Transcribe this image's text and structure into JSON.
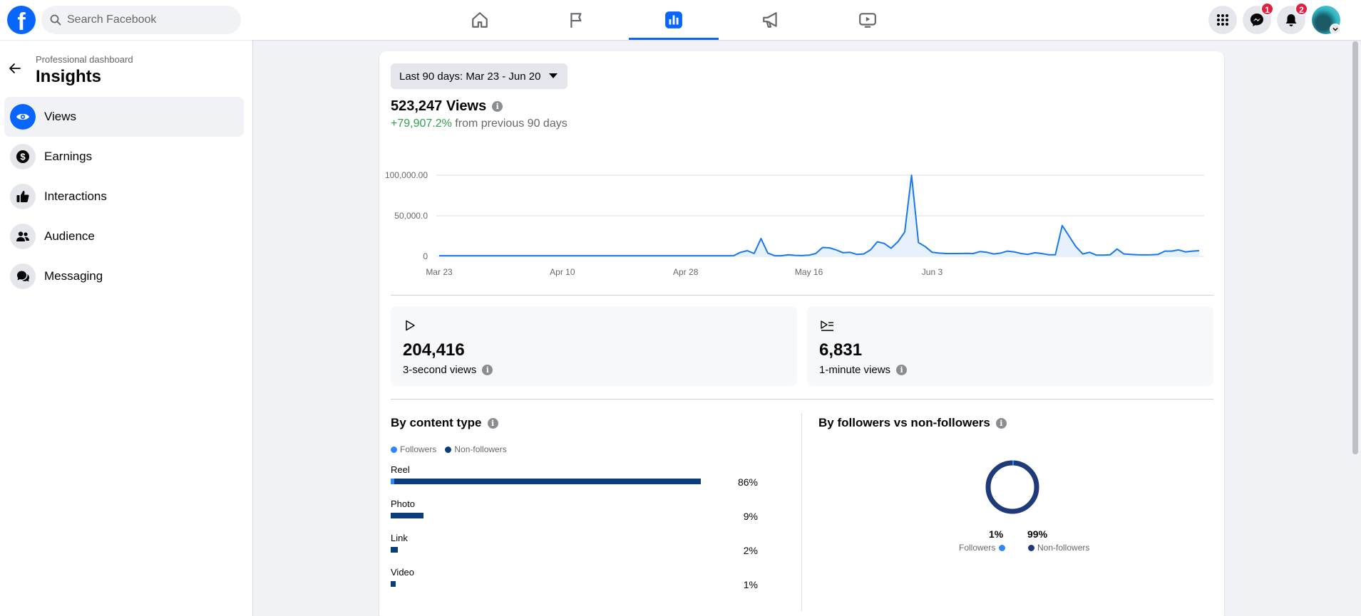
{
  "header": {
    "search_placeholder": "Search Facebook",
    "nav_tabs": [
      {
        "name": "home",
        "icon": "home-icon",
        "active": false
      },
      {
        "name": "pages",
        "icon": "flag-icon",
        "active": false
      },
      {
        "name": "insights",
        "icon": "bar-chart-icon",
        "active": true
      },
      {
        "name": "ads",
        "icon": "megaphone-icon",
        "active": false
      },
      {
        "name": "watch",
        "icon": "video-icon",
        "active": false
      }
    ],
    "messenger_badge": "1",
    "notifications_badge": "2",
    "accent": "#0866ff"
  },
  "sidebar": {
    "subtitle": "Professional dashboard",
    "title": "Insights",
    "items": [
      {
        "label": "Views",
        "icon": "eye-icon",
        "active": true
      },
      {
        "label": "Earnings",
        "icon": "dollar-icon",
        "active": false
      },
      {
        "label": "Interactions",
        "icon": "thumbs-up-icon",
        "active": false
      },
      {
        "label": "Audience",
        "icon": "people-icon",
        "active": false
      },
      {
        "label": "Messaging",
        "icon": "chat-icon",
        "active": false
      }
    ]
  },
  "main": {
    "date_range": "Last 90 days: Mar 23 - Jun 20",
    "total_views": "523,247 Views",
    "growth_value": "+79,907.2%",
    "growth_text": " from previous 90 days",
    "stats": [
      {
        "icon": "play-icon",
        "value": "204,416",
        "label": "3-second views"
      },
      {
        "icon": "play-list-icon",
        "value": "6,831",
        "label": "1-minute views"
      }
    ],
    "content_type": {
      "title": "By content type",
      "legend": [
        "Followers",
        "Non-followers"
      ],
      "rows": [
        {
          "label": "Reel",
          "pct": "86%",
          "share": 0.86,
          "followers_share": 0.01
        },
        {
          "label": "Photo",
          "pct": "9%",
          "share": 0.09,
          "followers_share": 0.0
        },
        {
          "label": "Link",
          "pct": "2%",
          "share": 0.02,
          "followers_share": 0.0
        },
        {
          "label": "Video",
          "pct": "1%",
          "share": 0.01,
          "followers_share": 0.0
        }
      ]
    },
    "followers_split": {
      "title": "By followers vs non-followers",
      "followers_pct": "1%",
      "non_followers_pct": "99%",
      "followers_label": "Followers",
      "non_followers_label": "Non-followers",
      "followers_color": "#2d88ff",
      "non_followers_color": "#1e3a78"
    }
  },
  "chart_data": {
    "type": "area",
    "x_tick_labels": [
      "Mar 23",
      "Apr 10",
      "Apr 28",
      "May 16",
      "Jun 3"
    ],
    "y_tick_labels": [
      "100,000.00",
      "50,000.0",
      "0"
    ],
    "ylim": [
      0,
      100000
    ],
    "grid": true,
    "series": [
      {
        "values": [
          800,
          800,
          800,
          800,
          800,
          800,
          800,
          800,
          800,
          800,
          800,
          800,
          800,
          800,
          800,
          800,
          800,
          800,
          800,
          800,
          800,
          800,
          800,
          800,
          800,
          800,
          800,
          800,
          800,
          800,
          800,
          800,
          800,
          800,
          800,
          800,
          800,
          800,
          800,
          800,
          800,
          800,
          800,
          800,
          5000,
          7000,
          3500,
          22000,
          4000,
          800,
          800,
          2000,
          1200,
          1000,
          1500,
          3500,
          11000,
          10500,
          8000,
          4500,
          5000,
          2500,
          3000,
          8000,
          18000,
          16000,
          10000,
          18000,
          30000,
          100000,
          17000,
          12000,
          5000,
          4000,
          3500,
          3500,
          3500,
          3800,
          3500,
          6000,
          5000,
          3000,
          4000,
          6500,
          5500,
          3500,
          2500,
          4500,
          3500,
          2000,
          2000,
          38000,
          25000,
          12000,
          3000,
          5000,
          1500,
          1500,
          2000,
          9000,
          3000,
          2500,
          2000,
          1800,
          2000,
          2500,
          6500,
          6500,
          8000,
          5500,
          6500,
          7000
        ]
      }
    ],
    "line_color": "#1877f2",
    "fill_color": "#e7f0fd"
  }
}
